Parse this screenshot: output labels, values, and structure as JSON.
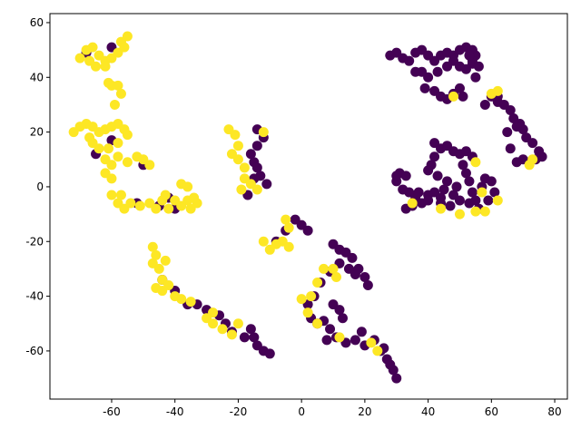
{
  "chart_data": {
    "type": "scatter",
    "xlim": [
      -79.5,
      84
    ],
    "ylim": [
      -77.6,
      63.3
    ],
    "xticks": [
      -60,
      -40,
      -20,
      0,
      20,
      40,
      60,
      80
    ],
    "yticks": [
      -60,
      -40,
      -20,
      0,
      20,
      40,
      60
    ],
    "series": [
      {
        "color": "#440154",
        "x": [
          28,
          30,
          32,
          34,
          36,
          38,
          40,
          42,
          44,
          46,
          48,
          50,
          52,
          54,
          55,
          54,
          52,
          50,
          48,
          46,
          43,
          40,
          38,
          36,
          39,
          42,
          44,
          46,
          48,
          50,
          51,
          54,
          56,
          55,
          53,
          60,
          62,
          64,
          66,
          67,
          69,
          70,
          71,
          73,
          75,
          76,
          74,
          72,
          70,
          68,
          66,
          65,
          68,
          62,
          58,
          42,
          44,
          46,
          48,
          50,
          52,
          54,
          51,
          52,
          53,
          54,
          55,
          57,
          58,
          60,
          61,
          59,
          56,
          53,
          50,
          48,
          45,
          42,
          40,
          38,
          36,
          34,
          32,
          30,
          31,
          33,
          35,
          33,
          40,
          44,
          47,
          42,
          41,
          40,
          43,
          46,
          49,
          44,
          37,
          30,
          10,
          12,
          14,
          16,
          18,
          20,
          21,
          17,
          15,
          12,
          9,
          6,
          4,
          2,
          3,
          5,
          7,
          9,
          11,
          14,
          17,
          20,
          23,
          25,
          27,
          29,
          30,
          28,
          26,
          19,
          8,
          10,
          12,
          13,
          -2,
          0,
          2,
          -5,
          -8,
          -14,
          -12,
          -14,
          -16,
          -15,
          -13,
          -11,
          -15,
          -17,
          -14,
          -30,
          -26,
          -24,
          -22,
          -18,
          -15,
          -14,
          -12,
          -10,
          -16,
          -33,
          -68,
          -60,
          -65,
          -60,
          -50,
          -52,
          -45,
          -40,
          -42,
          -44,
          -40,
          -36
        ],
        "y": [
          48,
          49,
          47,
          46,
          49,
          50,
          48,
          46,
          48,
          49,
          48,
          50,
          51,
          50,
          48,
          45,
          43,
          44,
          46,
          44,
          42,
          40,
          42,
          42,
          36,
          35,
          33,
          32,
          34,
          36,
          33,
          46,
          44,
          40,
          48,
          33,
          33,
          30,
          28,
          25,
          23,
          21,
          18,
          16,
          13,
          11,
          10,
          9,
          10,
          9,
          14,
          20,
          22,
          31,
          30,
          16,
          14,
          15,
          13,
          12,
          13,
          11,
          8,
          5,
          2,
          -2,
          -5,
          0,
          3,
          2,
          -2,
          -5,
          -8,
          -6,
          -5,
          -3,
          -1,
          -2,
          -3,
          -6,
          -4,
          -2,
          -1,
          2,
          5,
          4,
          -7,
          -8,
          -5,
          -6,
          -7,
          11,
          8,
          6,
          4,
          2,
          0,
          -4,
          -2,
          4,
          -21,
          -23,
          -24,
          -26,
          -30,
          -33,
          -36,
          -32,
          -30,
          -28,
          -31,
          -35,
          -40,
          -43,
          -48,
          -50,
          -49,
          -52,
          -55,
          -57,
          -56,
          -58,
          -56,
          -60,
          -63,
          -67,
          -70,
          -65,
          -59,
          -53,
          -56,
          -43,
          -45,
          -48,
          -12,
          -14,
          -16,
          -16,
          -20,
          21,
          18,
          15,
          12,
          9,
          4,
          1,
          3,
          -3,
          7,
          -45,
          -47,
          -50,
          -53,
          -55,
          -55,
          -58,
          -60,
          -61,
          -52,
          -43,
          49,
          51,
          12,
          17,
          8,
          -6,
          -7,
          -8,
          -4,
          -34,
          -38,
          -43
        ]
      },
      {
        "color": "#fde725",
        "x": [
          -70,
          -68,
          -66,
          -64,
          -62,
          -60,
          -58,
          -56,
          -55,
          -57,
          -65,
          -62,
          -60,
          -58,
          -57,
          -59,
          -61,
          -67,
          -72,
          -70,
          -68,
          -66,
          -64,
          -62,
          -60,
          -58,
          -56,
          -55,
          -58,
          -61,
          -64,
          -66,
          -67,
          -62,
          -60,
          -62,
          -60,
          -58,
          -55,
          -52,
          -50,
          -48,
          -60,
          -58,
          -56,
          -54,
          -51,
          -48,
          -46,
          -44,
          -43,
          -42,
          -40,
          -38,
          -36,
          -35,
          -38,
          -36,
          -34,
          -33,
          -57,
          -47,
          -46,
          -47,
          -45,
          -44,
          -46,
          -44,
          -42,
          -40,
          -38,
          -35,
          -43,
          -30,
          -28,
          -25,
          -22,
          -20,
          -28,
          -23,
          -21,
          -20,
          -22,
          -20,
          -18,
          -18,
          -16,
          -14,
          -12,
          -19,
          -5,
          -4,
          -6,
          -8,
          -4,
          -12,
          -10,
          0,
          3,
          5,
          7,
          10,
          11,
          2,
          5,
          12,
          22,
          24,
          48,
          55,
          60,
          62,
          57,
          73,
          72,
          58,
          62,
          55,
          35,
          44,
          50
        ],
        "y": [
          47,
          50,
          51,
          48,
          46,
          47,
          49,
          51,
          55,
          53,
          44,
          44,
          37,
          37,
          34,
          30,
          38,
          46,
          20,
          22,
          23,
          22,
          20,
          21,
          22,
          23,
          21,
          19,
          16,
          14,
          14,
          16,
          18,
          10,
          8,
          5,
          3,
          11,
          9,
          11,
          10,
          8,
          -3,
          -6,
          -8,
          -6,
          -7,
          -6,
          -8,
          -5,
          -3,
          -8,
          -5,
          -7,
          -5,
          -8,
          1,
          0,
          -4,
          -6,
          -3,
          -22,
          -25,
          -28,
          -30,
          -34,
          -37,
          -38,
          -36,
          -40,
          -41,
          -42,
          -27,
          -48,
          -50,
          -52,
          -54,
          -50,
          -46,
          21,
          19,
          15,
          12,
          10,
          7,
          3,
          1,
          -1,
          20,
          -1,
          -12,
          -15,
          -20,
          -21,
          -22,
          -20,
          -23,
          -41,
          -40,
          -35,
          -30,
          -30,
          -33,
          -46,
          -50,
          -55,
          -57,
          -60,
          33,
          -9,
          34,
          35,
          -2,
          10,
          8,
          -9,
          -5,
          9,
          -6,
          -8,
          -10
        ]
      }
    ]
  }
}
